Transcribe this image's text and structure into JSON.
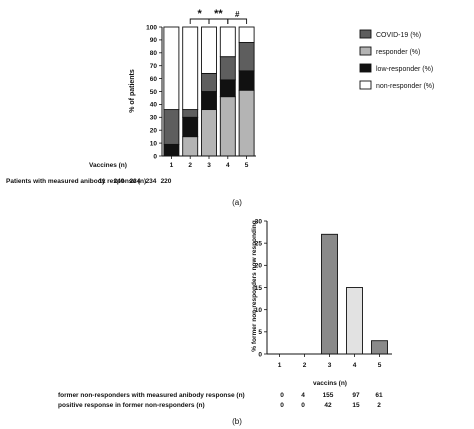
{
  "chart_data": [
    {
      "panel": "(a)",
      "type": "bar",
      "stacked": true,
      "xlabel": "Vaccines (n)",
      "ylabel": "% of patients",
      "ylim": [
        0,
        100
      ],
      "yticks": [
        0,
        10,
        20,
        30,
        40,
        50,
        60,
        70,
        80,
        90,
        100
      ],
      "categories": [
        "1",
        "2",
        "3",
        "4",
        "5"
      ],
      "series": [
        {
          "name": "responder (%)",
          "color": "#b4b4b4",
          "values": [
            0,
            15,
            36,
            46,
            51
          ]
        },
        {
          "name": "low-responder (%)",
          "color": "#111111",
          "values": [
            9,
            15,
            14,
            13,
            15
          ]
        },
        {
          "name": "COVID-19 (%)",
          "color": "#5e5e5e",
          "values": [
            27,
            6,
            14,
            18,
            22
          ]
        },
        {
          "name": "non-responder (%)",
          "color": "#ffffff",
          "values": [
            64,
            64,
            36,
            23,
            12
          ]
        }
      ],
      "legend_order": [
        "COVID-19 (%)",
        "responder (%)",
        "low-responder (%)",
        "non-responder (%)"
      ],
      "legend_position": "right",
      "significance": [
        {
          "label": "*",
          "from": "2",
          "to": "3"
        },
        {
          "label": "**",
          "from": "3",
          "to": "4"
        },
        {
          "label": "#",
          "from": "4",
          "to": "5"
        }
      ],
      "table_label": "Patients with measured anibody response (n)",
      "table_values": [
        "11",
        "249",
        "234",
        "234",
        "220"
      ]
    },
    {
      "panel": "(b)",
      "type": "bar",
      "xlabel": "vaccins (n)",
      "ylabel": "% former non-responders now responding",
      "ylim": [
        0,
        30
      ],
      "yticks": [
        0,
        5,
        10,
        15,
        20,
        25,
        30
      ],
      "categories": [
        "1",
        "2",
        "3",
        "4",
        "5"
      ],
      "values": [
        0,
        0,
        27,
        15,
        3
      ],
      "colors": [
        "#8a8a8a",
        "#8a8a8a",
        "#8a8a8a",
        "#e2e2e2",
        "#8a8a8a"
      ],
      "table_rows": [
        {
          "label": "former non-responders with measured anibody response (n)",
          "values": [
            "0",
            "4",
            "155",
            "97",
            "61"
          ]
        },
        {
          "label": "positive response in former non-responders (n)",
          "values": [
            "0",
            "0",
            "42",
            "15",
            "2"
          ]
        }
      ]
    }
  ]
}
